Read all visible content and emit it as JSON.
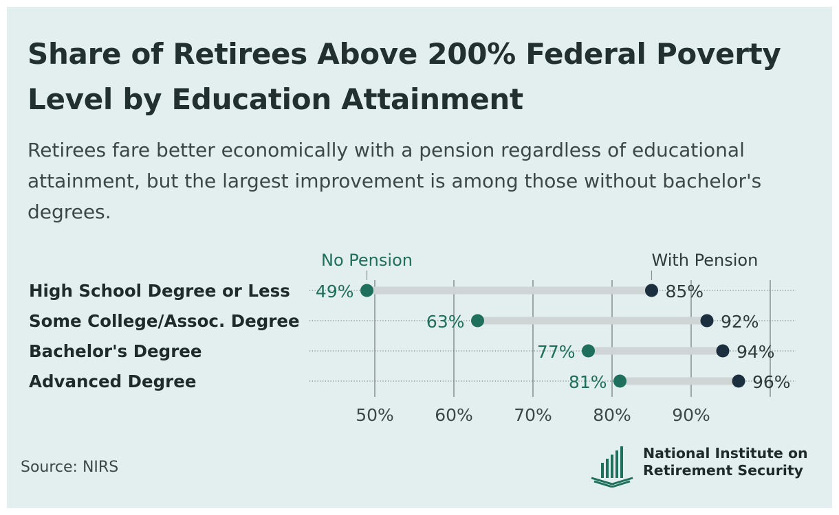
{
  "header": {
    "title": "Share of Retirees Above 200% Federal Poverty Level by Education Attainment",
    "subtitle": "Retirees fare better economically with a pension regardless of educational attainment, but the largest improvement is among those without bachelor's degrees."
  },
  "chart_data": {
    "type": "dumbbell",
    "categories": [
      "High School Degree or Less",
      "Some College/Assoc. Degree",
      "Bachelor's Degree",
      "Advanced Degree"
    ],
    "series": [
      {
        "name": "No Pension",
        "values": [
          49,
          63,
          77,
          81
        ],
        "labels": [
          "49%",
          "63%",
          "77%",
          "81%"
        ],
        "color": "#1e6f5c"
      },
      {
        "name": "With Pension",
        "values": [
          85,
          92,
          94,
          96
        ],
        "labels": [
          "85%",
          "92%",
          "94%",
          "96%"
        ],
        "color": "#1c2f3f"
      }
    ],
    "xticks": [
      50,
      60,
      70,
      80,
      90
    ],
    "xtick_labels": [
      "50%",
      "60%",
      "70%",
      "80%",
      "90%"
    ],
    "xlim": [
      50,
      100
    ],
    "grid": true,
    "connector_color": "#cfd4d4"
  },
  "footer": {
    "source": "Source: NIRS",
    "logo_line1": "National Institute on",
    "logo_line2": "Retirement Security",
    "logo_color": "#1e6f5c",
    "icon": "bar-columns-logo-icon"
  }
}
